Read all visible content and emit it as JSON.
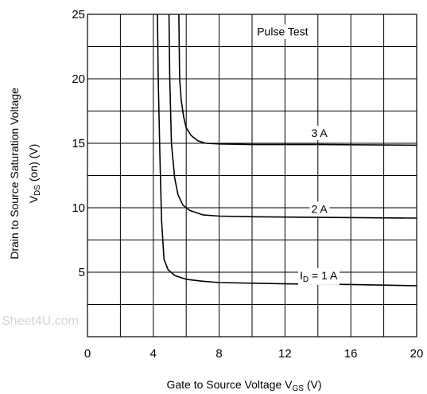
{
  "chart_data": {
    "type": "line",
    "x_ticks": [
      0,
      4,
      8,
      12,
      16,
      20
    ],
    "y_ticks": [
      5,
      10,
      15,
      20,
      25
    ],
    "xlim": [
      0,
      20
    ],
    "ylim": [
      0,
      25
    ],
    "grid": true,
    "x_minor_step": 2,
    "y_minor_step": 2.5,
    "xlabel": {
      "main": "Gate to Source Voltage V",
      "sub": "GS",
      "tail": " (V)"
    },
    "ylabel_line1": "Drain to Source Saturation Voltage",
    "ylabel_line2": {
      "main": "V",
      "sub": "DS",
      "tail": " (on)  (V)"
    },
    "annotation": "Pulse Test",
    "watermark": "Sheet4U.com",
    "series": [
      {
        "name": "3 A",
        "label": {
          "main": "3 A"
        },
        "x": [
          5.55,
          5.6,
          5.7,
          5.85,
          6.0,
          6.3,
          6.7,
          7.2,
          8.0,
          10.0,
          14.0,
          20.0
        ],
        "y": [
          25,
          20,
          18.3,
          17.0,
          16.2,
          15.6,
          15.2,
          15.0,
          14.95,
          14.9,
          14.9,
          14.85
        ]
      },
      {
        "name": "2 A",
        "label": {
          "main": "2 A"
        },
        "x": [
          4.95,
          5.0,
          5.1,
          5.3,
          5.5,
          5.8,
          6.2,
          7.0,
          8.0,
          10.0,
          14.0,
          20.0
        ],
        "y": [
          25,
          20,
          15,
          12.3,
          11.0,
          10.2,
          9.8,
          9.45,
          9.35,
          9.3,
          9.25,
          9.2
        ]
      },
      {
        "name": "1 A",
        "label": {
          "main": "I",
          "sub": "D",
          "tail": " = 1 A"
        },
        "x": [
          4.25,
          4.3,
          4.4,
          4.5,
          4.65,
          4.9,
          5.3,
          6.0,
          7.0,
          8.0,
          12.0,
          16.0,
          20.0
        ],
        "y": [
          25,
          20,
          14,
          9,
          6.0,
          5.2,
          4.75,
          4.45,
          4.3,
          4.2,
          4.1,
          4.05,
          3.95
        ]
      }
    ]
  }
}
